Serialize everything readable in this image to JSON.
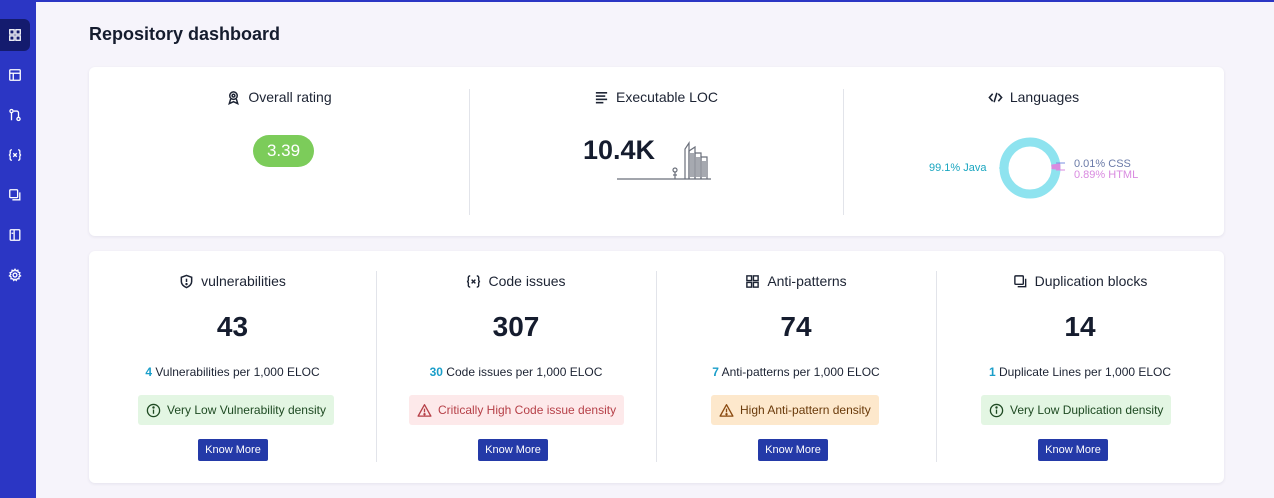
{
  "page": {
    "title": "Repository dashboard"
  },
  "sidebar": {
    "items": [
      {
        "icon": "grid-icon",
        "active": true
      },
      {
        "icon": "layout-icon",
        "active": false
      },
      {
        "icon": "git-merge-icon",
        "active": false
      },
      {
        "icon": "variable-icon",
        "active": false
      },
      {
        "icon": "copy-icon",
        "active": false
      },
      {
        "icon": "book-icon",
        "active": false
      },
      {
        "icon": "gear-icon",
        "active": false
      }
    ]
  },
  "summary": {
    "rating": {
      "label": "Overall rating",
      "value": "3.39",
      "color": "#7ccc5a"
    },
    "loc": {
      "label": "Executable LOC",
      "value": "10.4K"
    },
    "languages": {
      "label": "Languages",
      "items": [
        {
          "name": "Java",
          "text": "99.1% Java",
          "percent": 99.1,
          "color": "#8ee3ef"
        },
        {
          "name": "CSS",
          "text": "0.01% CSS",
          "percent": 0.01,
          "color": "#7a8fe0"
        },
        {
          "name": "HTML",
          "text": "0.89% HTML",
          "percent": 0.89,
          "color": "#d98ae0"
        }
      ]
    }
  },
  "metrics": [
    {
      "label": "vulnerabilities",
      "icon": "shield-icon",
      "value": "43",
      "per_value": "4",
      "per_text": " Vulnerabilities per 1,000 ELOC",
      "badge": "Very Low Vulnerability density",
      "badge_type": "green",
      "button": "Know More"
    },
    {
      "label": "Code issues",
      "icon": "variable-icon",
      "value": "307",
      "per_value": "30",
      "per_text": " Code issues per 1,000 ELOC",
      "badge": "Critically High Code issue density",
      "badge_type": "red",
      "button": "Know More"
    },
    {
      "label": "Anti-patterns",
      "icon": "grid-icon",
      "value": "74",
      "per_value": "7",
      "per_text": " Anti-patterns per 1,000 ELOC",
      "badge": "High Anti-pattern density",
      "badge_type": "orange",
      "button": "Know More"
    },
    {
      "label": "Duplication blocks",
      "icon": "copy-icon",
      "value": "14",
      "per_value": "1",
      "per_text": " Duplicate Lines per 1,000 ELOC",
      "badge": "Very Low Duplication density",
      "badge_type": "green",
      "button": "Know More"
    }
  ]
}
